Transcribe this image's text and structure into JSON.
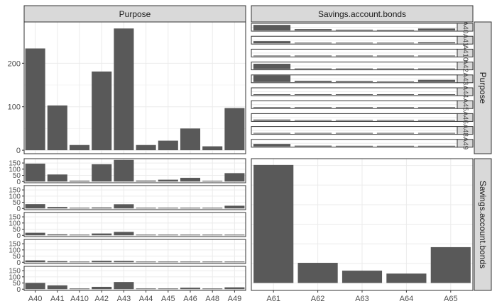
{
  "strips": {
    "col_left": "Purpose",
    "col_right": "Savings.account.bonds",
    "row_top": "Purpose",
    "row_bottom": "Savings.account.bonds"
  },
  "colors": {
    "bar": "#595959",
    "strip_bg": "#d9d9d9",
    "grid": "#ebebeb",
    "frame": "#333333"
  },
  "chart_data": [
    {
      "type": "bar",
      "panel": "Purpose x Purpose",
      "categories": [
        "A40",
        "A41",
        "A410",
        "A42",
        "A43",
        "A44",
        "A45",
        "A46",
        "A48",
        "A49"
      ],
      "values": [
        234,
        103,
        12,
        181,
        280,
        12,
        22,
        50,
        9,
        97
      ],
      "yticks": [
        0,
        100,
        200
      ],
      "ylim": [
        -8,
        295
      ],
      "grid": true
    },
    {
      "type": "bar",
      "panel": "Savings.account.bonds x Purpose",
      "rows": [
        "A61",
        "A62",
        "A63",
        "A64",
        "A65"
      ],
      "categories": [
        "A40",
        "A41",
        "A410",
        "A42",
        "A43",
        "A44",
        "A45",
        "A46",
        "A48",
        "A49"
      ],
      "values": [
        [
          145,
          57,
          7,
          140,
          175,
          8,
          15,
          30,
          3,
          68
        ],
        [
          35,
          12,
          0,
          8,
          34,
          0,
          0,
          5,
          0,
          22
        ],
        [
          21,
          8,
          1,
          15,
          28,
          2,
          3,
          3,
          3,
          4
        ],
        [
          15,
          9,
          0,
          12,
          11,
          0,
          0,
          0,
          0,
          4
        ],
        [
          51,
          31,
          3,
          19,
          58,
          1,
          3,
          12,
          3,
          15
        ]
      ],
      "yticks": [
        0,
        50,
        100,
        150
      ],
      "ylim": [
        -10,
        185
      ],
      "grid": true
    },
    {
      "type": "bar",
      "panel": "Purpose x Savings.account.bonds",
      "row_labels": [
        "A40",
        "A41",
        "A410",
        "A42",
        "A43",
        "A44",
        "A45",
        "A46",
        "A48",
        "A49"
      ],
      "categories": [
        "A61",
        "A62",
        "A63",
        "A64",
        "A65"
      ],
      "values": [
        [
          145,
          35,
          21,
          15,
          51
        ],
        [
          57,
          12,
          8,
          9,
          31
        ],
        [
          7,
          0,
          1,
          0,
          3
        ],
        [
          140,
          8,
          15,
          12,
          19
        ],
        [
          175,
          34,
          28,
          11,
          58
        ],
        [
          8,
          0,
          2,
          0,
          1
        ],
        [
          15,
          0,
          3,
          0,
          3
        ],
        [
          30,
          5,
          3,
          0,
          12
        ],
        [
          3,
          0,
          3,
          0,
          3
        ],
        [
          68,
          22,
          4,
          4,
          15
        ]
      ],
      "grid": true
    },
    {
      "type": "bar",
      "panel": "Savings.account.bonds x Savings.account.bonds",
      "categories": [
        "A61",
        "A62",
        "A63",
        "A64",
        "A65"
      ],
      "values": [
        603,
        103,
        63,
        48,
        183
      ],
      "grid": true
    }
  ]
}
